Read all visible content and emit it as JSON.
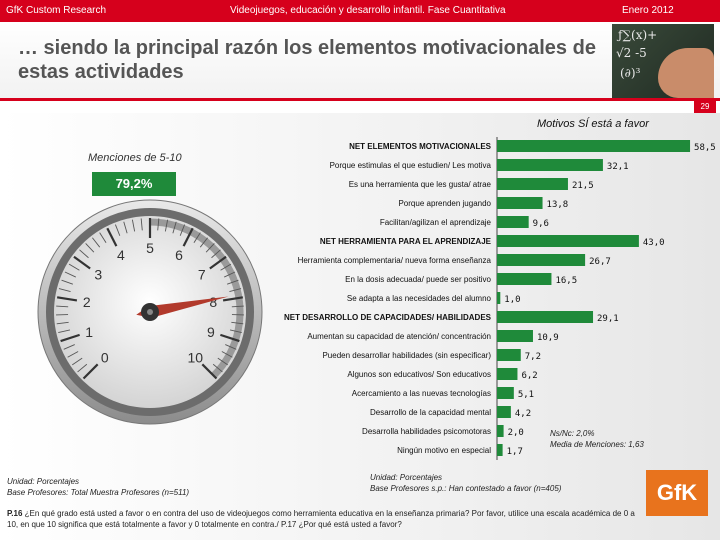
{
  "header": {
    "left": "GfK Custom Research",
    "center": "Videojuegos, educación y desarrollo infantil. Fase Cuantitativa",
    "right": "Enero 2012"
  },
  "title": "… siendo la principal razón los elementos motivacionales de estas actividades",
  "page_number": "29",
  "gauge": {
    "label": "Menciones de 5-10",
    "percent": "79,2%",
    "scale": [
      "0",
      "1",
      "2",
      "3",
      "4",
      "5",
      "6",
      "7",
      "8",
      "9",
      "10"
    ]
  },
  "legend_title": "Motivos SÍ está a favor",
  "colors": {
    "red": "#d6001c",
    "green": "#1f8a3a",
    "orange": "#e8731d"
  },
  "chart_data": {
    "type": "bar",
    "orientation": "horizontal",
    "title": "Motivos SÍ está a favor",
    "xlim": [
      0,
      60
    ],
    "rows": [
      {
        "label": "NET ELEMENTOS MOTIVACIONALES",
        "value": 58.5,
        "display": "58,5",
        "net": true
      },
      {
        "label": "Porque estimulas el que estudien/ Les motiva",
        "value": 32.1,
        "display": "32,1",
        "net": false
      },
      {
        "label": "Es una herramienta que les gusta/ atrae",
        "value": 21.5,
        "display": "21,5",
        "net": false
      },
      {
        "label": "Porque aprenden jugando",
        "value": 13.8,
        "display": "13,8",
        "net": false
      },
      {
        "label": "Facilitan/agilizan el aprendizaje",
        "value": 9.6,
        "display": "9,6",
        "net": false
      },
      {
        "label": "NET HERRAMIENTA PARA EL APRENDIZAJE",
        "value": 43.0,
        "display": "43,0",
        "net": true
      },
      {
        "label": "Herramienta complementaria/ nueva forma enseñanza",
        "value": 26.7,
        "display": "26,7",
        "net": false
      },
      {
        "label": "En la dosis adecuada/ puede ser positivo",
        "value": 16.5,
        "display": "16,5",
        "net": false
      },
      {
        "label": "Se adapta a las necesidades del alumno",
        "value": 1.0,
        "display": "1,0",
        "net": false
      },
      {
        "label": "NET DESARROLLO DE CAPACIDADES/ HABILIDADES",
        "value": 29.1,
        "display": "29,1",
        "net": true
      },
      {
        "label": "Aumentan su capacidad de atención/ concentración",
        "value": 10.9,
        "display": "10,9",
        "net": false
      },
      {
        "label": "Pueden desarrollar habilidades (sin especificar)",
        "value": 7.2,
        "display": "7,2",
        "net": false
      },
      {
        "label": "Algunos son educativos/ Son educativos",
        "value": 6.2,
        "display": "6,2",
        "net": false
      },
      {
        "label": "Acercamiento a las nuevas tecnologías",
        "value": 5.1,
        "display": "5,1",
        "net": false
      },
      {
        "label": "Desarrollo de la capacidad mental",
        "value": 4.2,
        "display": "4,2",
        "net": false
      },
      {
        "label": "Desarrolla habilidades psicomotoras",
        "value": 2.0,
        "display": "2,0",
        "net": false
      },
      {
        "label": "Ningún motivo en especial",
        "value": 1.7,
        "display": "1,7",
        "net": false
      }
    ]
  },
  "notes": {
    "ns_nc": "Ns/Nc: 2,0%",
    "media": "Media de Menciones: 1,63",
    "unidad_left": "Unidad: Porcentajes",
    "base_left": "Base Profesores: Total Muestra Profesores (n=511)",
    "unidad_right": "Unidad: Porcentajes",
    "base_right": "Base Profesores s.p.: Han contestado a favor (n=405)",
    "question_label": "P.16",
    "question_text": "¿En qué grado está usted a favor o en contra del uso de videojuegos como herramienta educativa en la enseñanza primaria? Por favor, utilice una escala académica de 0 a 10, en que 10 significa que está totalmente a favor y 0 totalmente en contra./ P.17 ¿Por qué está usted a favor?"
  },
  "logo": "GfK"
}
